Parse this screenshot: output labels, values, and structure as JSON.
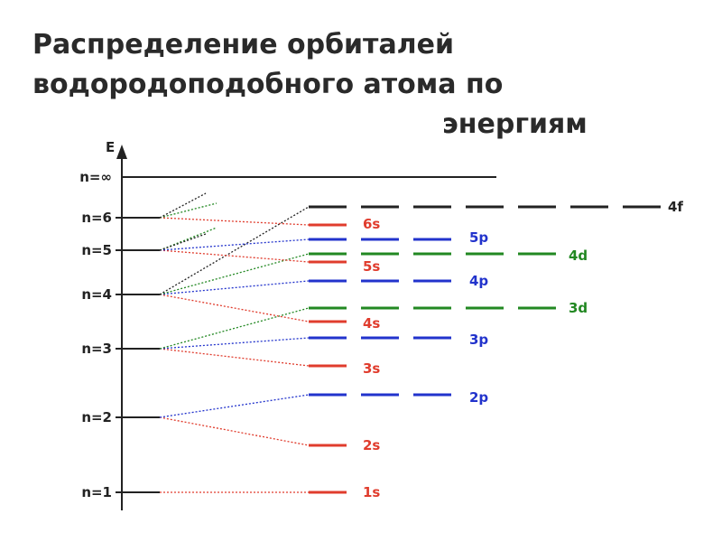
{
  "title": {
    "line1": "Распределение орбиталей",
    "line2": "водородоподобного атома по",
    "line3": "энергиям"
  },
  "axis_label": "E",
  "levels": [
    {
      "label": "n=∞"
    },
    {
      "label": "n=6"
    },
    {
      "label": "n=5"
    },
    {
      "label": "n=4"
    },
    {
      "label": "n=3"
    },
    {
      "label": "n=2"
    },
    {
      "label": "n=1"
    }
  ],
  "orbitals": [
    {
      "label": "1s",
      "type": "s"
    },
    {
      "label": "2s",
      "type": "s"
    },
    {
      "label": "2p",
      "type": "p"
    },
    {
      "label": "3s",
      "type": "s"
    },
    {
      "label": "3p",
      "type": "p"
    },
    {
      "label": "3d",
      "type": "d"
    },
    {
      "label": "4s",
      "type": "s"
    },
    {
      "label": "4p",
      "type": "p"
    },
    {
      "label": "4d",
      "type": "d"
    },
    {
      "label": "4f",
      "type": "f"
    },
    {
      "label": "5s",
      "type": "s"
    },
    {
      "label": "5p",
      "type": "p"
    },
    {
      "label": "6s",
      "type": "s"
    }
  ],
  "colors": {
    "s": "#e03c2d",
    "p": "#2233cc",
    "d": "#228822",
    "f": "#222222",
    "axis": "#222222",
    "title": "#2a2a2a"
  }
}
